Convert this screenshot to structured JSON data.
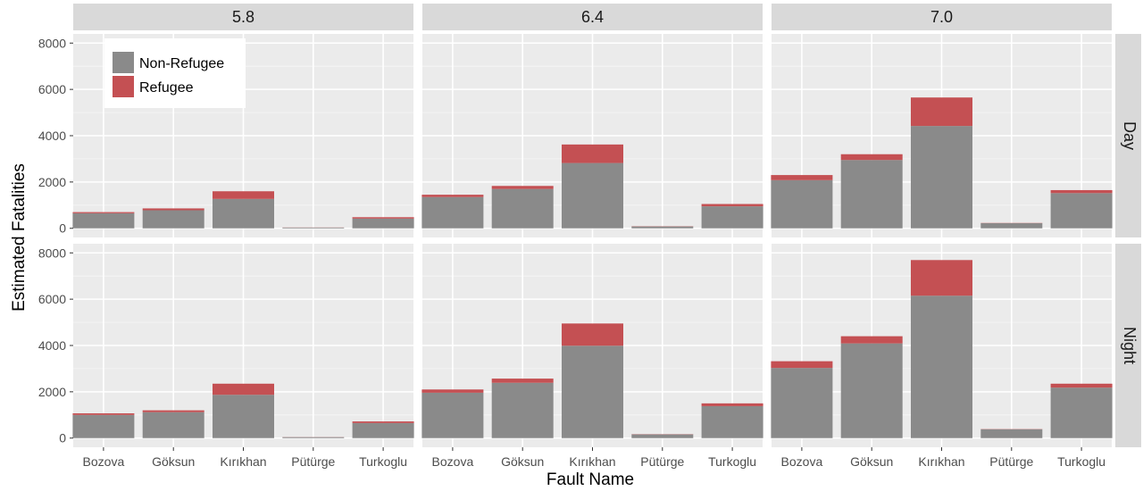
{
  "chart_data": {
    "type": "bar",
    "stacked": true,
    "xlabel": "Fault Name",
    "ylabel": "Estimated Fatalities",
    "ylim": [
      0,
      8000
    ],
    "yticks": [
      0,
      2000,
      4000,
      6000,
      8000
    ],
    "categories": [
      "Bozova",
      "Göksun",
      "Kırıkhan",
      "Pütürge",
      "Turkoglu"
    ],
    "column_facets": [
      "5.8",
      "6.4",
      "7.0"
    ],
    "row_facets": [
      "Day",
      "Night"
    ],
    "grid": true,
    "legend_position": "top-left inside first panel",
    "series": [
      {
        "name": "Non-Refugee",
        "color": "#8a8a8a"
      },
      {
        "name": "Refugee",
        "color": "#c45053"
      }
    ],
    "panels": [
      {
        "column": "5.8",
        "row": "Day",
        "values": {
          "Non-Refugee": [
            650,
            780,
            1270,
            30,
            420
          ],
          "Refugee": [
            50,
            80,
            330,
            5,
            60
          ]
        }
      },
      {
        "column": "6.4",
        "row": "Day",
        "values": {
          "Non-Refugee": [
            1350,
            1700,
            2820,
            80,
            950
          ],
          "Refugee": [
            100,
            130,
            800,
            10,
            100
          ]
        }
      },
      {
        "column": "7.0",
        "row": "Day",
        "values": {
          "Non-Refugee": [
            2080,
            2950,
            4420,
            220,
            1520
          ],
          "Refugee": [
            220,
            250,
            1230,
            10,
            130
          ]
        }
      },
      {
        "column": "5.8",
        "row": "Night",
        "values": {
          "Non-Refugee": [
            1000,
            1120,
            1870,
            40,
            650
          ],
          "Refugee": [
            70,
            80,
            480,
            5,
            70
          ]
        }
      },
      {
        "column": "6.4",
        "row": "Night",
        "values": {
          "Non-Refugee": [
            1960,
            2390,
            3990,
            160,
            1380
          ],
          "Refugee": [
            140,
            180,
            960,
            10,
            120
          ]
        }
      },
      {
        "column": "7.0",
        "row": "Night",
        "values": {
          "Non-Refugee": [
            3030,
            4090,
            6150,
            380,
            2180
          ],
          "Refugee": [
            290,
            310,
            1540,
            10,
            170
          ]
        }
      }
    ]
  }
}
